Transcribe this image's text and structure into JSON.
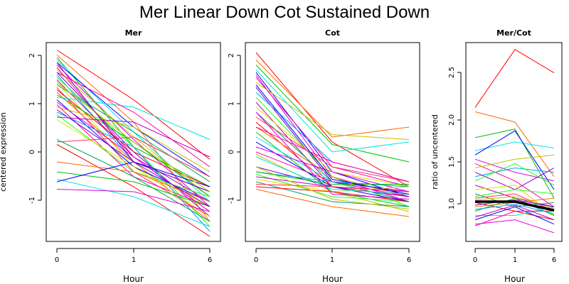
{
  "title": "Mer Linear Down Cot Sustained Down",
  "colors": [
    "#ff0000",
    "#ff6a00",
    "#00c000",
    "#00e5e5",
    "#0000ff",
    "#e000e0",
    "#ff00a0",
    "#c0c000",
    "#8000c0",
    "#00a0ff",
    "#20ff20",
    "#c000c0",
    "#e0e000",
    "#00a060",
    "#ff3060"
  ],
  "chart_data": [
    {
      "type": "line",
      "title": "Mer",
      "xlabel": "Hour",
      "ylabel": "centered expression",
      "categories": [
        "0",
        "1",
        "6"
      ],
      "ylim": [
        -1.7,
        2.3
      ],
      "yticks": [
        "2",
        "1",
        "0",
        "-1"
      ],
      "series": [
        {
          "values": [
            2.15,
            1.15,
            -0.05
          ]
        },
        {
          "values": [
            2.05,
            0.7,
            -1.3
          ]
        },
        {
          "values": [
            2.0,
            0.2,
            -0.6
          ]
        },
        {
          "values": [
            1.95,
            0.5,
            -0.9
          ]
        },
        {
          "values": [
            1.9,
            0.6,
            -0.4
          ]
        },
        {
          "values": [
            1.85,
            0.35,
            -1.0
          ]
        },
        {
          "values": [
            1.8,
            0.0,
            -1.1
          ]
        },
        {
          "values": [
            1.75,
            0.4,
            -0.8
          ]
        },
        {
          "values": [
            1.7,
            0.1,
            -1.2
          ]
        },
        {
          "values": [
            1.65,
            -0.1,
            -0.7
          ]
        },
        {
          "values": [
            1.6,
            0.2,
            -1.4
          ]
        },
        {
          "values": [
            1.55,
            0.0,
            -0.9
          ]
        },
        {
          "values": [
            1.5,
            -0.2,
            -1.0
          ]
        },
        {
          "values": [
            1.45,
            0.5,
            -0.5
          ]
        },
        {
          "values": [
            1.4,
            -0.3,
            -1.2
          ]
        },
        {
          "values": [
            1.35,
            0.1,
            -0.6
          ]
        },
        {
          "values": [
            1.3,
            -0.1,
            -1.3
          ]
        },
        {
          "values": [
            1.25,
            0.3,
            -0.8
          ]
        },
        {
          "values": [
            1.2,
            1.0,
            0.35
          ]
        },
        {
          "values": [
            1.15,
            -0.2,
            -0.9
          ]
        },
        {
          "values": [
            1.1,
            0.0,
            -1.1
          ]
        },
        {
          "values": [
            1.05,
            -0.4,
            -1.0
          ]
        },
        {
          "values": [
            1.0,
            0.6,
            -0.3
          ]
        },
        {
          "values": [
            0.95,
            -0.1,
            -0.7
          ]
        },
        {
          "values": [
            0.9,
            0.2,
            -1.5
          ]
        },
        {
          "values": [
            0.85,
            -0.3,
            -0.8
          ]
        },
        {
          "values": [
            0.8,
            0.7,
            0.0
          ]
        },
        {
          "values": [
            0.75,
            -0.2,
            -1.2
          ]
        },
        {
          "values": [
            0.35,
            -0.4,
            -1.3
          ]
        },
        {
          "values": [
            0.3,
            0.4,
            -0.4
          ]
        },
        {
          "values": [
            0.25,
            -0.6,
            -1.6
          ]
        },
        {
          "values": [
            -0.1,
            -0.3,
            -0.9
          ]
        },
        {
          "values": [
            -0.3,
            -0.5,
            -1.0
          ]
        },
        {
          "values": [
            -0.45,
            -0.8,
            -1.4
          ]
        },
        {
          "values": [
            -0.5,
            -0.1,
            -0.6
          ]
        },
        {
          "values": [
            -0.65,
            -0.7,
            -1.1
          ]
        },
        {
          "values": [
            1.7,
            0.9,
            -0.2
          ]
        },
        {
          "values": [
            1.5,
            0.3,
            -0.7
          ]
        },
        {
          "values": [
            1.9,
            -0.1,
            -1.0
          ]
        }
      ]
    },
    {
      "type": "line",
      "title": "Cot",
      "xlabel": "Hour",
      "ylabel": "",
      "categories": [
        "0",
        "1",
        "6"
      ],
      "ylim": [
        -1.7,
        2.3
      ],
      "yticks": [
        "2",
        "1",
        "0",
        "-1"
      ],
      "series": [
        {
          "values": [
            2.1,
            0.3,
            -0.6
          ]
        },
        {
          "values": [
            1.95,
            0.4,
            0.6
          ]
        },
        {
          "values": [
            1.85,
            0.25,
            -0.1
          ]
        },
        {
          "values": [
            1.75,
            0.1,
            0.3
          ]
        },
        {
          "values": [
            1.7,
            -0.3,
            -0.8
          ]
        },
        {
          "values": [
            1.65,
            -0.4,
            -0.9
          ]
        },
        {
          "values": [
            1.6,
            -0.2,
            -0.6
          ]
        },
        {
          "values": [
            1.5,
            0.45,
            0.35
          ]
        },
        {
          "values": [
            1.4,
            -0.5,
            -0.7
          ]
        },
        {
          "values": [
            1.3,
            -0.1,
            -0.5
          ]
        },
        {
          "values": [
            1.2,
            -0.4,
            -1.0
          ]
        },
        {
          "values": [
            1.1,
            -0.6,
            -0.8
          ]
        },
        {
          "values": [
            1.0,
            -0.3,
            -0.6
          ]
        },
        {
          "values": [
            0.9,
            -0.5,
            -0.9
          ]
        },
        {
          "values": [
            0.8,
            -0.2,
            -0.5
          ]
        },
        {
          "values": [
            0.7,
            -0.6,
            -0.7
          ]
        },
        {
          "values": [
            0.6,
            -0.4,
            -0.8
          ]
        },
        {
          "values": [
            0.5,
            -0.7,
            -1.0
          ]
        },
        {
          "values": [
            0.4,
            -0.5,
            -0.6
          ]
        },
        {
          "values": [
            0.3,
            -0.6,
            -0.9
          ]
        },
        {
          "values": [
            0.2,
            -0.3,
            -0.7
          ]
        },
        {
          "values": [
            0.1,
            -0.5,
            -0.8
          ]
        },
        {
          "values": [
            0.05,
            -0.7,
            -1.1
          ]
        },
        {
          "values": [
            -0.2,
            -0.6,
            -0.7
          ]
        },
        {
          "values": [
            -0.3,
            -0.5,
            -0.6
          ]
        },
        {
          "values": [
            -0.35,
            -0.8,
            -0.9
          ]
        },
        {
          "values": [
            -0.4,
            -0.6,
            -0.8
          ]
        },
        {
          "values": [
            -0.45,
            -0.7,
            -0.6
          ]
        },
        {
          "values": [
            -0.5,
            -0.9,
            -1.0
          ]
        },
        {
          "values": [
            -0.55,
            -0.6,
            -0.7
          ]
        },
        {
          "values": [
            -0.6,
            -0.7,
            -0.9
          ]
        },
        {
          "values": [
            -0.65,
            -1.0,
            -1.2
          ]
        },
        {
          "values": [
            -0.3,
            -0.55,
            -0.55
          ]
        },
        {
          "values": [
            0.0,
            -0.65,
            -0.75
          ]
        },
        {
          "values": [
            1.45,
            -0.45,
            -0.75
          ]
        },
        {
          "values": [
            0.9,
            -0.75,
            -0.85
          ]
        },
        {
          "values": [
            0.6,
            -0.1,
            -0.5
          ]
        },
        {
          "values": [
            -0.2,
            -0.85,
            -1.05
          ]
        }
      ]
    },
    {
      "type": "line",
      "title": "Mer/Cot",
      "xlabel": "Hour",
      "ylabel": "ratio of uncentered",
      "categories": [
        "0",
        "1",
        "6"
      ],
      "ylim": [
        0.6,
        2.9
      ],
      "yticks": [
        "2.5",
        "2.0",
        "1.5",
        "1.0"
      ],
      "series": [
        {
          "values": [
            2.15,
            2.82,
            2.55
          ]
        },
        {
          "values": [
            2.1,
            1.98,
            1.35
          ]
        },
        {
          "values": [
            1.8,
            1.9,
            1.1
          ]
        },
        {
          "values": [
            1.65,
            1.75,
            1.68
          ]
        },
        {
          "values": [
            1.6,
            1.88,
            1.2
          ]
        },
        {
          "values": [
            1.55,
            1.4,
            1.3
          ]
        },
        {
          "values": [
            1.5,
            1.3,
            1.0
          ]
        },
        {
          "values": [
            1.45,
            1.55,
            1.6
          ]
        },
        {
          "values": [
            1.4,
            1.2,
            1.45
          ]
        },
        {
          "values": [
            1.35,
            1.45,
            1.4
          ]
        },
        {
          "values": [
            1.3,
            1.5,
            1.25
          ]
        },
        {
          "values": [
            1.25,
            1.1,
            1.0
          ]
        },
        {
          "values": [
            1.2,
            1.25,
            0.9
          ]
        },
        {
          "values": [
            1.15,
            1.0,
            1.05
          ]
        },
        {
          "values": [
            1.1,
            1.15,
            0.95
          ]
        },
        {
          "values": [
            1.05,
            0.95,
            0.85
          ]
        },
        {
          "values": [
            1.0,
            1.05,
            1.1
          ]
        },
        {
          "values": [
            0.95,
            1.1,
            0.9
          ]
        },
        {
          "values": [
            0.9,
            0.9,
            1.0
          ]
        },
        {
          "values": [
            0.85,
            1.0,
            0.8
          ]
        },
        {
          "values": [
            0.8,
            0.85,
            0.7
          ]
        },
        {
          "values": [
            0.78,
            0.95,
            0.95
          ]
        },
        {
          "values": [
            1.08,
            1.12,
            0.98
          ]
        },
        {
          "values": [
            1.02,
            1.08,
            1.0
          ]
        },
        {
          "values": [
            0.97,
            1.03,
            0.92
          ]
        },
        {
          "values": [
            1.12,
            1.2,
            1.15
          ]
        },
        {
          "values": [
            0.88,
            1.02,
            0.85
          ]
        },
        {
          "values": [
            1.06,
            1.06,
            0.96
          ],
          "highlight": true
        }
      ]
    }
  ]
}
